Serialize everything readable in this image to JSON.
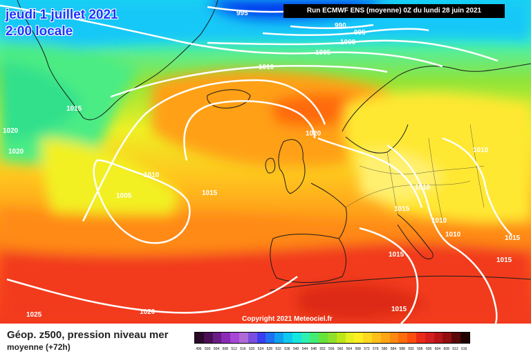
{
  "header": {
    "date_line": "jeudi 1 juillet 2021",
    "time_line": "2:00 locale",
    "run_banner": "Run ECMWF ENS (moyenne) 0Z du lundi 28 juin 2021",
    "copyright": "Copyright 2021 Meteociel.fr"
  },
  "footer": {
    "title": "Géop. z500, pression niveau mer",
    "subtitle": "moyenne   (+72h)"
  },
  "isobar_labels": [
    "995",
    "990",
    "995",
    "1000",
    "1005",
    "1010",
    "1015",
    "1020",
    "1020",
    "1010",
    "1005",
    "1015",
    "1020",
    "1010",
    "1010",
    "1015",
    "1010",
    "1010",
    "1015",
    "1015",
    "1015",
    "1025",
    "1020",
    "1015"
  ],
  "color_scale": {
    "values": [
      "496",
      "500",
      "504",
      "508",
      "512",
      "516",
      "520",
      "524",
      "528",
      "532",
      "536",
      "540",
      "544",
      "548",
      "552",
      "556",
      "560",
      "564",
      "568",
      "572",
      "576",
      "580",
      "584",
      "588",
      "592",
      "596",
      "600",
      "604",
      "608",
      "612",
      "616"
    ],
    "colors": [
      "#2a0a28",
      "#4b0f55",
      "#6a1c86",
      "#8c2ab8",
      "#a846d6",
      "#b06ad8",
      "#7a4fe0",
      "#3b3df0",
      "#1f6ff2",
      "#10a0f0",
      "#0fc8f0",
      "#14e6e0",
      "#2ef0b0",
      "#44ec74",
      "#66e43c",
      "#8ee02a",
      "#bce818",
      "#e6f020",
      "#ffee22",
      "#ffd820",
      "#ffbf18",
      "#ffa414",
      "#ff8810",
      "#ff6c0c",
      "#ff4d10",
      "#ec2a18",
      "#d41e1e",
      "#b81418",
      "#920e10",
      "#5a0808",
      "#220000"
    ]
  }
}
